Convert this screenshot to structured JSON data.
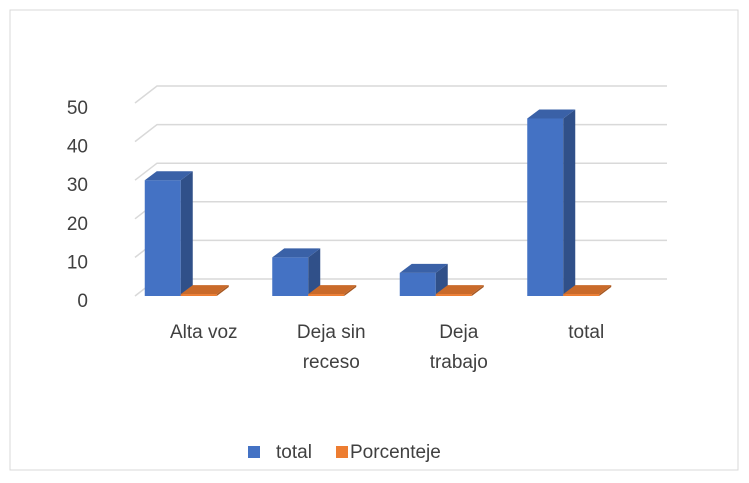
{
  "chart_data": {
    "type": "bar3d",
    "categories": [
      "Alta voz",
      "Deja sin receso",
      "Deja trabajo",
      "total"
    ],
    "series": [
      {
        "name": "total",
        "color": "#4472c4",
        "values": [
          30,
          10,
          6,
          46
        ]
      },
      {
        "name": "Porcenteje",
        "color": "#ed7d31",
        "values": [
          0.5,
          0.5,
          0.5,
          0.5
        ]
      }
    ],
    "ylim": [
      0,
      50
    ],
    "yticks": [
      0,
      10,
      20,
      30,
      40,
      50
    ],
    "grid": true,
    "legend": "bottom"
  }
}
